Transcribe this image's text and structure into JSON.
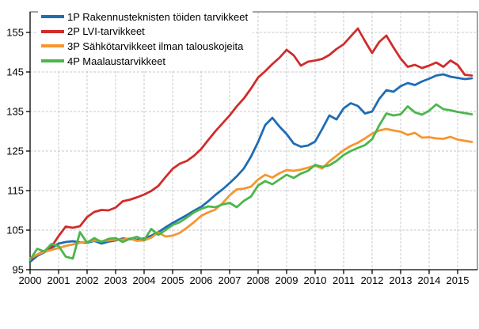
{
  "chart_data": {
    "type": "line",
    "title": "",
    "x_label": "",
    "y_label": "",
    "x_ticks": [
      2000,
      2001,
      2002,
      2003,
      2004,
      2005,
      2006,
      2007,
      2008,
      2009,
      2010,
      2011,
      2012,
      2013,
      2014,
      2015
    ],
    "y_ticks": [
      95,
      105,
      115,
      125,
      135,
      145,
      155
    ],
    "xlim": [
      2000,
      2015.69
    ],
    "ylim": [
      95,
      160.2
    ],
    "x_start_year": 2000,
    "x_interval_years": 0.25,
    "grid": "dashed-both-axes",
    "legend_position": "top-left-inside",
    "gridline_color": "#c9c9c9",
    "axis_color": "#000000",
    "border_color": "#4d4d4d",
    "series": [
      {
        "id": "1P",
        "label": "1P Rakennusteknisten töiden tarvikkeet",
        "color": "#1f6cb4",
        "values": [
          97.0,
          98.5,
          99.4,
          100.5,
          101.6,
          102.0,
          102.2,
          101.9,
          101.8,
          102.3,
          101.6,
          102.1,
          102.4,
          102.9,
          102.7,
          102.6,
          102.9,
          103.6,
          104.5,
          105.7,
          106.8,
          107.8,
          108.8,
          109.9,
          110.9,
          112.3,
          113.9,
          115.3,
          116.9,
          118.6,
          120.6,
          123.6,
          127.3,
          131.6,
          133.4,
          131.2,
          129.3,
          126.9,
          126.1,
          126.4,
          127.4,
          130.6,
          134.0,
          133.0,
          135.8,
          137.1,
          136.4,
          134.5,
          135.0,
          138.2,
          140.4,
          140.0,
          141.4,
          142.2,
          141.7,
          142.6,
          143.3,
          144.1,
          144.4,
          143.8,
          143.5,
          143.2,
          143.4
        ]
      },
      {
        "id": "2P",
        "label": "2P LVI-tarvikkeet",
        "color": "#d02c2a",
        "values": [
          97.5,
          98.8,
          99.7,
          100.8,
          103.5,
          105.9,
          105.6,
          106.0,
          108.3,
          109.6,
          110.1,
          110.0,
          110.7,
          112.3,
          112.7,
          113.3,
          114.0,
          114.9,
          116.2,
          118.4,
          120.5,
          121.8,
          122.5,
          123.8,
          125.5,
          127.8,
          130.0,
          132.0,
          134.0,
          136.3,
          138.3,
          140.8,
          143.6,
          145.2,
          147.0,
          148.6,
          150.6,
          149.2,
          146.6,
          147.6,
          147.9,
          148.3,
          149.3,
          150.8,
          152.0,
          154.0,
          156.0,
          152.8,
          149.8,
          152.6,
          154.2,
          151.2,
          148.4,
          146.3,
          146.8,
          146.0,
          146.6,
          147.4,
          146.3,
          147.9,
          146.8,
          144.3,
          144.1
        ]
      },
      {
        "id": "3P",
        "label": "3P Sähkötarvikkeet ilman talouskojeita",
        "color": "#f6962f",
        "values": [
          97.9,
          98.8,
          99.5,
          100.0,
          100.5,
          101.0,
          101.4,
          101.8,
          102.1,
          102.4,
          102.2,
          102.4,
          102.6,
          102.6,
          102.9,
          102.3,
          102.4,
          103.1,
          104.4,
          103.4,
          103.6,
          104.3,
          105.6,
          107.0,
          108.6,
          109.5,
          110.2,
          111.8,
          113.8,
          115.3,
          115.5,
          116.0,
          117.8,
          119.0,
          118.3,
          119.4,
          120.2,
          120.0,
          120.3,
          120.8,
          121.3,
          120.6,
          122.4,
          123.8,
          125.2,
          126.3,
          127.1,
          128.2,
          129.4,
          130.2,
          130.6,
          130.2,
          129.9,
          129.1,
          129.6,
          128.4,
          128.5,
          128.2,
          128.1,
          128.6,
          127.9,
          127.6,
          127.3
        ]
      },
      {
        "id": "4P",
        "label": "4P Maalaustarvikkeet",
        "color": "#4cb64c",
        "values": [
          97.5,
          100.3,
          99.6,
          101.5,
          101.0,
          98.3,
          97.8,
          104.5,
          101.8,
          103.0,
          102.0,
          102.8,
          103.0,
          102.0,
          102.8,
          103.3,
          102.5,
          105.3,
          103.8,
          105.0,
          106.3,
          107.0,
          108.2,
          109.5,
          110.4,
          111.0,
          110.8,
          111.5,
          111.9,
          110.8,
          112.4,
          113.5,
          116.3,
          117.4,
          116.6,
          117.8,
          119.0,
          118.2,
          119.3,
          120.0,
          121.5,
          121.0,
          121.4,
          122.5,
          124.0,
          125.0,
          125.8,
          126.5,
          128.0,
          131.5,
          134.5,
          134.0,
          134.3,
          136.3,
          134.8,
          134.2,
          135.2,
          136.8,
          135.6,
          135.3,
          134.9,
          134.6,
          134.3
        ]
      }
    ]
  }
}
